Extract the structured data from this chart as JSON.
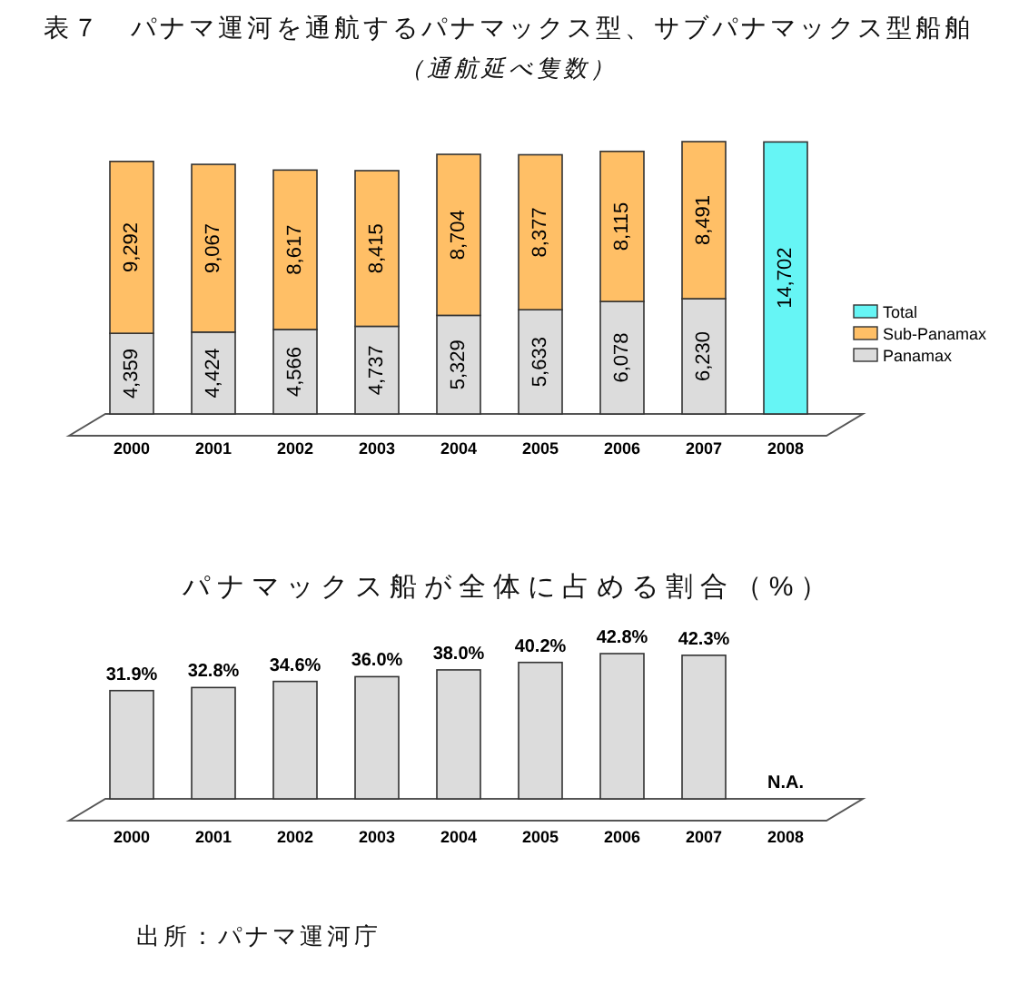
{
  "chart_data": [
    {
      "type": "bar",
      "title": "表７　パナマ運河を通航するパナマックス型、サブパナマックス型船舶",
      "subtitle": "（通航延べ隻数）",
      "stacked": true,
      "legend": "right",
      "categories": [
        "2000",
        "2001",
        "2002",
        "2003",
        "2004",
        "2005",
        "2006",
        "2007",
        "2008"
      ],
      "series": [
        {
          "name": "Panamax",
          "color": "#dcdcdc",
          "values": [
            4359,
            4424,
            4566,
            4737,
            5329,
            5633,
            6078,
            6230,
            null
          ],
          "value_labels": [
            "4,359",
            "4,424",
            "4,566",
            "4,737",
            "5,329",
            "5,633",
            "6,078",
            "6,230",
            null
          ]
        },
        {
          "name": "Sub-Panamax",
          "color": "#ffbf66",
          "values": [
            9292,
            9067,
            8617,
            8415,
            8704,
            8377,
            8115,
            8491,
            null
          ],
          "value_labels": [
            "9,292",
            "9,067",
            "8,617",
            "8,415",
            "8,704",
            "8,377",
            "8,115",
            "8,491",
            null
          ]
        },
        {
          "name": "Total",
          "color": "#66f5f5",
          "values": [
            null,
            null,
            null,
            null,
            null,
            null,
            null,
            null,
            14702
          ],
          "value_labels": [
            null,
            null,
            null,
            null,
            null,
            null,
            null,
            null,
            "14,702"
          ]
        }
      ]
    },
    {
      "type": "bar",
      "title": "パナマックス船が全体に占める割合（%）",
      "color": "#dcdcdc",
      "categories": [
        "2000",
        "2001",
        "2002",
        "2003",
        "2004",
        "2005",
        "2006",
        "2007",
        "2008"
      ],
      "values": [
        31.9,
        32.8,
        34.6,
        36.0,
        38.0,
        40.2,
        42.8,
        42.3,
        null
      ],
      "value_labels": [
        "31.9%",
        "32.8%",
        "34.6%",
        "36.0%",
        "38.0%",
        "40.2%",
        "42.8%",
        "42.3%",
        "N.A."
      ],
      "annotations": [
        "出所：パナマ運河庁"
      ]
    }
  ]
}
